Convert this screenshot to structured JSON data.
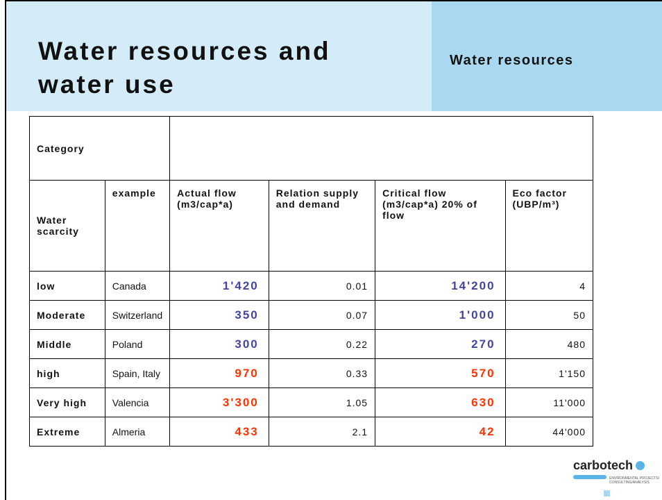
{
  "header": {
    "title_lines": [
      "Water resources and",
      "water use"
    ],
    "section": "Water resources"
  },
  "table": {
    "category_label": "Category",
    "columns": [
      "Water scarcity",
      "example",
      "Actual flow (m3/cap*a)",
      "Relation supply and demand",
      "Critical flow (m3/cap*a) 20% of flow",
      "Eco factor (UBP/m³)"
    ],
    "rows": [
      [
        "low",
        "Canada",
        "1'420",
        "0.01",
        "14'200",
        "4"
      ],
      [
        "Moderate",
        "Switzerland",
        "350",
        "0.07",
        "1'000",
        "50"
      ],
      [
        "Middle",
        "Poland",
        "300",
        "0.22",
        "270",
        "480"
      ],
      [
        "high",
        "Spain, Italy",
        "970",
        "0.33",
        "570",
        "1'150"
      ],
      [
        "Very high",
        "Valencia",
        "3'300",
        "1.05",
        "630",
        "11'000"
      ],
      [
        "Extreme",
        "Almeria",
        "433",
        "2.1",
        "42",
        "44'000"
      ]
    ]
  },
  "logo": {
    "name": "carbotech",
    "tagline": "ENVIRONMENTAL PROJECTS/ CONSULTING/ANALYSIS"
  }
}
